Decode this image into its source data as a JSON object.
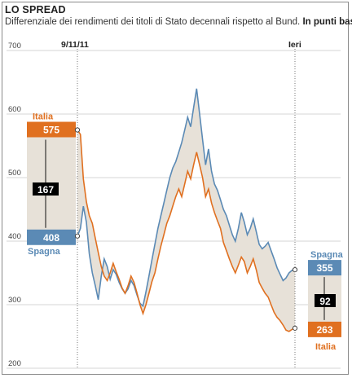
{
  "header": {
    "title": "LO SPREAD",
    "subtitle_main": "Differenziale dei rendimenti dei titoli di Stato decennali rispetto al Bund.",
    "subtitle_unit": "In punti base"
  },
  "markers": {
    "start_date": "9/11/11",
    "end_date": "Ieri"
  },
  "colors": {
    "italia": "#e07020",
    "spagna": "#5b8ab5",
    "fill": "#e7e1d8",
    "gap_box": "#000000"
  },
  "callouts": {
    "italia_label": "Italia",
    "spagna_label": "Spagna",
    "start": {
      "italia": "575",
      "spagna": "408",
      "gap": "167"
    },
    "end": {
      "italia": "263",
      "spagna": "355",
      "gap": "92"
    }
  },
  "chart_data": {
    "type": "line",
    "title": "LO SPREAD",
    "ylabel": "In punti base",
    "ylim": [
      200,
      700
    ],
    "yticks": [
      200,
      300,
      400,
      500,
      600,
      700
    ],
    "grid": true,
    "x_range": [
      0,
      100
    ],
    "series": [
      {
        "name": "Italia",
        "color": "#e07020",
        "points": [
          [
            0,
            575
          ],
          [
            1,
            568
          ],
          [
            2,
            498
          ],
          [
            3,
            462
          ],
          [
            4,
            440
          ],
          [
            5,
            428
          ],
          [
            6,
            405
          ],
          [
            7,
            382
          ],
          [
            8,
            360
          ],
          [
            9,
            345
          ],
          [
            10,
            338
          ],
          [
            11,
            350
          ],
          [
            12,
            365
          ],
          [
            13,
            352
          ],
          [
            14,
            340
          ],
          [
            15,
            326
          ],
          [
            16,
            318
          ],
          [
            17,
            330
          ],
          [
            18,
            345
          ],
          [
            19,
            335
          ],
          [
            20,
            318
          ],
          [
            21,
            300
          ],
          [
            22,
            286
          ],
          [
            23,
            300
          ],
          [
            24,
            318
          ],
          [
            25,
            336
          ],
          [
            26,
            350
          ],
          [
            27,
            372
          ],
          [
            28,
            392
          ],
          [
            29,
            410
          ],
          [
            30,
            428
          ],
          [
            31,
            440
          ],
          [
            32,
            455
          ],
          [
            33,
            470
          ],
          [
            34,
            482
          ],
          [
            35,
            470
          ],
          [
            36,
            490
          ],
          [
            37,
            510
          ],
          [
            38,
            498
          ],
          [
            39,
            520
          ],
          [
            40,
            540
          ],
          [
            41,
            520
          ],
          [
            42,
            500
          ],
          [
            43,
            470
          ],
          [
            44,
            482
          ],
          [
            45,
            460
          ],
          [
            46,
            445
          ],
          [
            47,
            432
          ],
          [
            48,
            420
          ],
          [
            49,
            398
          ],
          [
            50,
            385
          ],
          [
            51,
            372
          ],
          [
            52,
            360
          ],
          [
            53,
            350
          ],
          [
            54,
            362
          ],
          [
            55,
            375
          ],
          [
            56,
            368
          ],
          [
            57,
            350
          ],
          [
            58,
            360
          ],
          [
            59,
            372
          ],
          [
            60,
            355
          ],
          [
            61,
            335
          ],
          [
            62,
            326
          ],
          [
            63,
            318
          ],
          [
            64,
            312
          ],
          [
            65,
            300
          ],
          [
            66,
            288
          ],
          [
            67,
            280
          ],
          [
            68,
            275
          ],
          [
            69,
            268
          ],
          [
            70,
            260
          ],
          [
            71,
            258
          ],
          [
            72,
            261
          ],
          [
            73,
            263
          ]
        ]
      },
      {
        "name": "Spagna",
        "color": "#5b8ab5",
        "points": [
          [
            0,
            408
          ],
          [
            1,
            420
          ],
          [
            2,
            455
          ],
          [
            3,
            430
          ],
          [
            4,
            380
          ],
          [
            5,
            350
          ],
          [
            6,
            330
          ],
          [
            7,
            308
          ],
          [
            8,
            345
          ],
          [
            9,
            372
          ],
          [
            10,
            360
          ],
          [
            11,
            340
          ],
          [
            12,
            355
          ],
          [
            13,
            348
          ],
          [
            14,
            335
          ],
          [
            15,
            325
          ],
          [
            16,
            318
          ],
          [
            17,
            325
          ],
          [
            18,
            338
          ],
          [
            19,
            330
          ],
          [
            20,
            315
          ],
          [
            21,
            302
          ],
          [
            22,
            298
          ],
          [
            23,
            320
          ],
          [
            24,
            345
          ],
          [
            25,
            370
          ],
          [
            26,
            395
          ],
          [
            27,
            420
          ],
          [
            28,
            440
          ],
          [
            29,
            460
          ],
          [
            30,
            480
          ],
          [
            31,
            500
          ],
          [
            32,
            515
          ],
          [
            33,
            525
          ],
          [
            34,
            540
          ],
          [
            35,
            555
          ],
          [
            36,
            575
          ],
          [
            37,
            595
          ],
          [
            38,
            580
          ],
          [
            39,
            610
          ],
          [
            40,
            640
          ],
          [
            41,
            600
          ],
          [
            42,
            560
          ],
          [
            43,
            520
          ],
          [
            44,
            545
          ],
          [
            45,
            510
          ],
          [
            46,
            490
          ],
          [
            47,
            480
          ],
          [
            48,
            465
          ],
          [
            49,
            450
          ],
          [
            50,
            440
          ],
          [
            51,
            425
          ],
          [
            52,
            410
          ],
          [
            53,
            400
          ],
          [
            54,
            420
          ],
          [
            55,
            445
          ],
          [
            56,
            430
          ],
          [
            57,
            410
          ],
          [
            58,
            420
          ],
          [
            59,
            435
          ],
          [
            60,
            415
          ],
          [
            61,
            395
          ],
          [
            62,
            388
          ],
          [
            63,
            392
          ],
          [
            64,
            398
          ],
          [
            65,
            385
          ],
          [
            66,
            372
          ],
          [
            67,
            358
          ],
          [
            68,
            348
          ],
          [
            69,
            338
          ],
          [
            70,
            342
          ],
          [
            71,
            350
          ],
          [
            72,
            354
          ],
          [
            73,
            355
          ]
        ]
      }
    ]
  }
}
